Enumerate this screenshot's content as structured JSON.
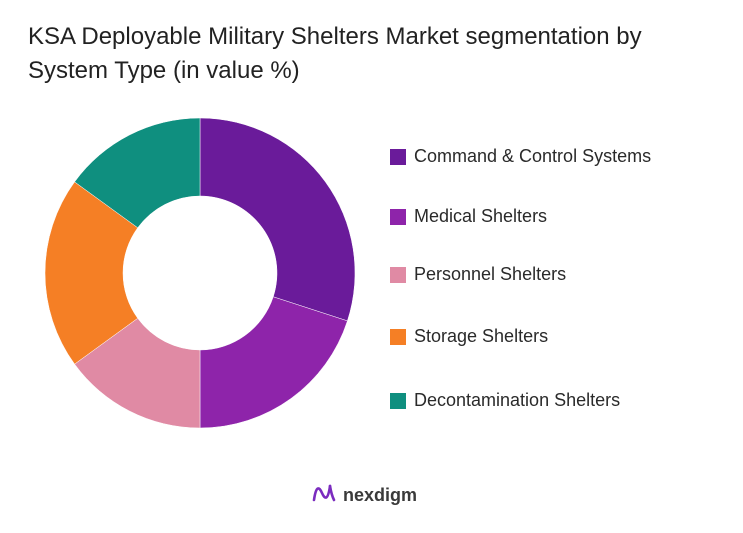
{
  "title": "KSA Deployable Military Shelters Market segmentation by System Type (in value %)",
  "chart_data": {
    "type": "pie",
    "donut": true,
    "title": "KSA Deployable Military Shelters Market segmentation by System Type (in value %)",
    "categories": [
      "Command & Control Systems",
      "Medical Shelters",
      "Personnel Shelters",
      "Storage Shelters",
      "Decontamination Shelters"
    ],
    "values": [
      30,
      20,
      15,
      20,
      15
    ],
    "colors": [
      "#6a1b9a",
      "#8e24aa",
      "#e08aa4",
      "#f57f25",
      "#0f8f7f"
    ],
    "legend_position": "right"
  },
  "brand": {
    "name": "nexdigm",
    "logo_icon": "nexdigm-logo-icon",
    "logo_color": "#7b2cbf"
  }
}
